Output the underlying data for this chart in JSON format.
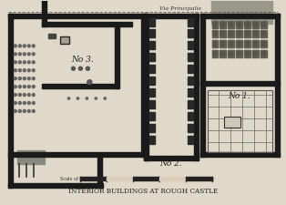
{
  "paper_color": "#e0d8c8",
  "wall_color": "#1a1a1a",
  "title": "Interior Buildings at Rough Castle",
  "subtitle": "Via Principalis",
  "label_3": "No 3.",
  "label_2": "No 2.",
  "label_1": "No 1."
}
